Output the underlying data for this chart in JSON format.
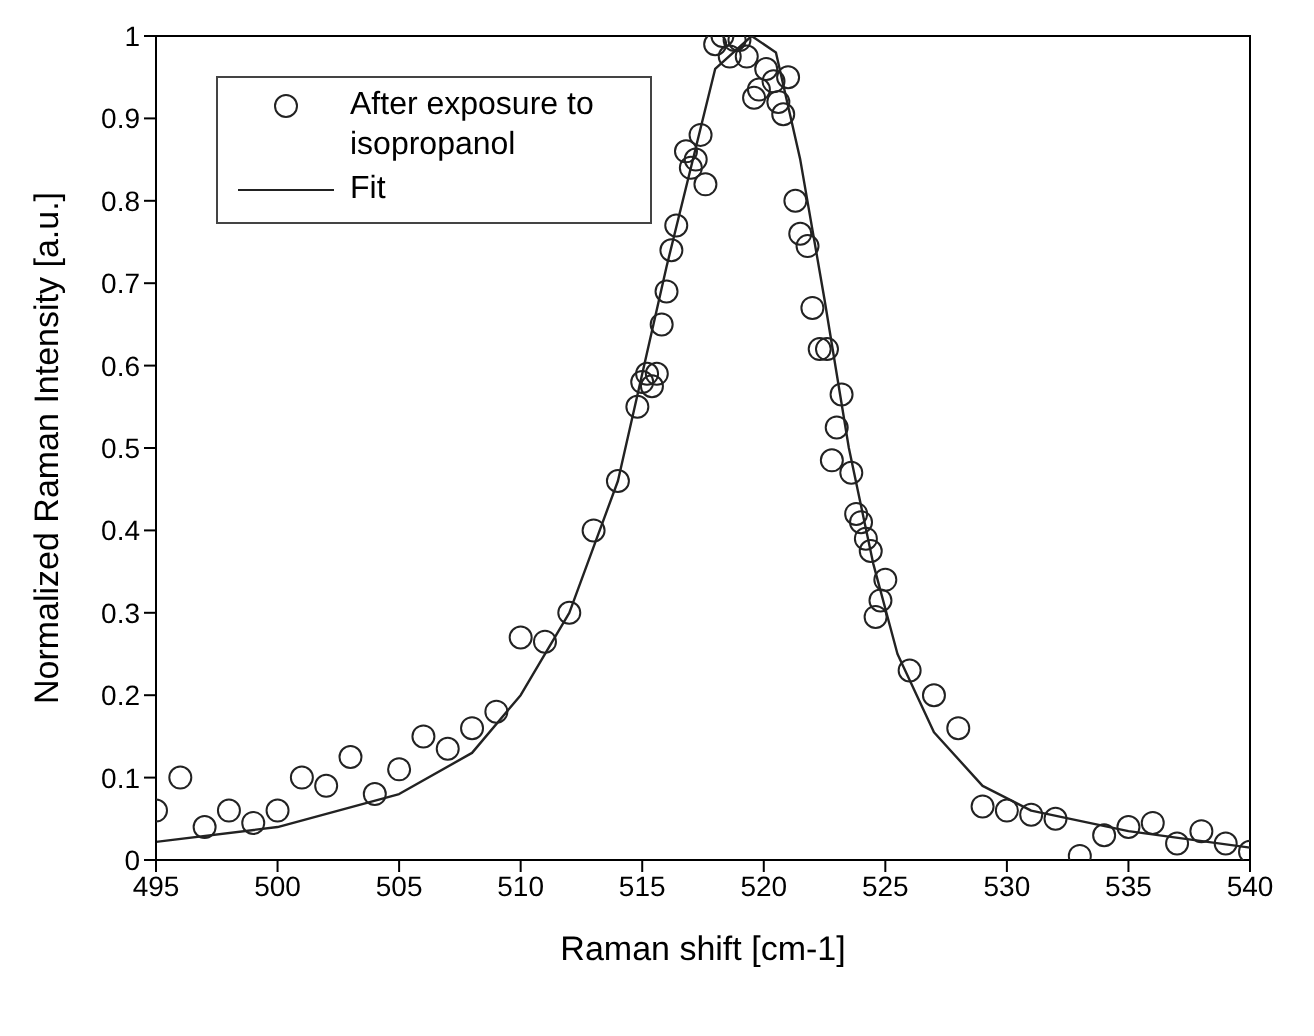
{
  "chart_data": {
    "type": "scatter",
    "xlabel": "Raman shift [cm-1]",
    "ylabel": "Normalized Raman Intensity [a.u.]",
    "xlim": [
      495,
      540
    ],
    "xticks": [
      495,
      500,
      505,
      510,
      515,
      520,
      525,
      530,
      535,
      540
    ],
    "ylim": [
      0,
      1
    ],
    "yticks": [
      0,
      0.1,
      0.2,
      0.3,
      0.4,
      0.5,
      0.6,
      0.7,
      0.8,
      0.9,
      1
    ],
    "grid": false,
    "legend": "top left",
    "series": [
      {
        "name": "After exposure to isopropanol",
        "marker": "circle",
        "color": "#222222",
        "x": [
          495,
          496,
          497,
          498,
          499,
          500,
          501,
          502,
          503,
          504,
          505,
          506,
          507,
          508,
          509,
          510,
          511,
          512,
          513,
          514,
          514.8,
          515,
          515.2,
          515.4,
          515.6,
          515.8,
          516,
          516.2,
          516.4,
          516.8,
          517,
          517.2,
          517.4,
          517.6,
          518,
          518.3,
          518.6,
          518.8,
          519,
          519.3,
          519.6,
          519.8,
          520.1,
          520.4,
          520.6,
          520.8,
          521,
          521.3,
          521.5,
          521.8,
          522,
          522.3,
          522.6,
          522.8,
          523,
          523.2,
          523.6,
          523.8,
          524,
          524.2,
          524.4,
          524.6,
          524.8,
          525,
          526,
          527,
          528,
          529,
          530,
          531,
          532,
          533,
          534,
          535,
          536,
          537,
          538,
          539,
          540
        ],
        "values": [
          0.06,
          0.1,
          0.04,
          0.06,
          0.045,
          0.06,
          0.1,
          0.09,
          0.125,
          0.08,
          0.11,
          0.15,
          0.135,
          0.16,
          0.18,
          0.27,
          0.265,
          0.3,
          0.4,
          0.46,
          0.55,
          0.58,
          0.59,
          0.575,
          0.59,
          0.65,
          0.69,
          0.74,
          0.77,
          0.86,
          0.84,
          0.85,
          0.88,
          0.82,
          0.99,
          1.0,
          0.975,
          0.995,
          0.995,
          0.975,
          0.925,
          0.935,
          0.96,
          0.945,
          0.92,
          0.905,
          0.95,
          0.8,
          0.76,
          0.745,
          0.67,
          0.62,
          0.62,
          0.485,
          0.525,
          0.565,
          0.47,
          0.42,
          0.41,
          0.39,
          0.375,
          0.295,
          0.315,
          0.34,
          0.23,
          0.2,
          0.16,
          0.065,
          0.06,
          0.055,
          0.05,
          0.005,
          0.03,
          0.04,
          0.045,
          0.02,
          0.035,
          0.02,
          0.01
        ]
      },
      {
        "name": "Fit",
        "type": "line",
        "marker": "none",
        "line_style": "solid",
        "color": "#222222",
        "x": [
          495,
          500,
          505,
          508,
          510,
          512,
          514,
          516,
          518,
          519.5,
          520.5,
          521.5,
          522.5,
          523.5,
          524.5,
          525.5,
          527,
          529,
          531,
          535,
          540
        ],
        "values": [
          0.022,
          0.04,
          0.08,
          0.13,
          0.2,
          0.3,
          0.46,
          0.72,
          0.96,
          1.0,
          0.98,
          0.85,
          0.68,
          0.5,
          0.36,
          0.25,
          0.155,
          0.09,
          0.06,
          0.035,
          0.015
        ]
      }
    ]
  }
}
